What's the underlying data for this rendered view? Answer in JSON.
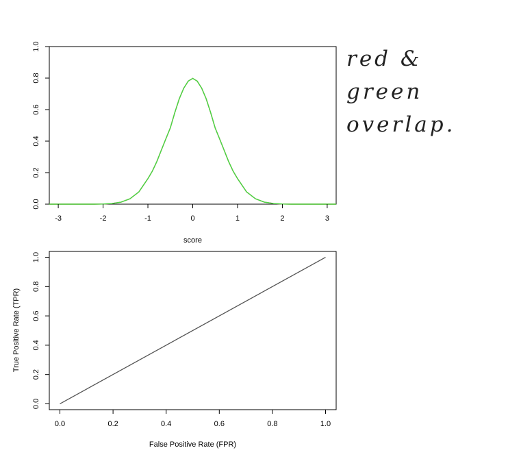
{
  "note": {
    "line1": "red & green",
    "line2": "overlap."
  },
  "chart_data": [
    {
      "type": "line",
      "title": "",
      "xlabel": "score",
      "ylabel": "",
      "xlim": [
        -3.2,
        3.2
      ],
      "ylim": [
        0,
        1.0
      ],
      "xticks": [
        "-3",
        "-2",
        "-1",
        "0",
        "1",
        "2",
        "3"
      ],
      "yticks": [
        "0.0",
        "0.2",
        "0.4",
        "0.6",
        "0.8",
        "1.0"
      ],
      "grid": false,
      "legend": "none",
      "series": [
        {
          "color": "#cc2222",
          "x": [
            -3.2,
            -3.0,
            -2.8,
            -2.6,
            -2.4,
            -2.2,
            -2.0,
            -1.8,
            -1.6,
            -1.4,
            -1.2,
            -1.0,
            -0.9,
            -0.8,
            -0.7,
            -0.6,
            -0.5,
            -0.4,
            -0.3,
            -0.2,
            -0.1,
            0.0,
            0.1,
            0.2,
            0.3,
            0.4,
            0.5,
            0.6,
            0.7,
            0.8,
            0.9,
            1.0,
            1.2,
            1.4,
            1.6,
            1.8,
            2.0,
            2.2,
            2.4,
            2.6,
            2.8,
            3.0,
            3.2
          ],
          "y": [
            0.0,
            0.0,
            0.0,
            0.0,
            0.0,
            0.0,
            0.001,
            0.004,
            0.013,
            0.034,
            0.078,
            0.162,
            0.21,
            0.271,
            0.343,
            0.414,
            0.484,
            0.581,
            0.669,
            0.736,
            0.781,
            0.798,
            0.781,
            0.736,
            0.669,
            0.581,
            0.484,
            0.414,
            0.343,
            0.271,
            0.21,
            0.162,
            0.078,
            0.034,
            0.013,
            0.004,
            0.001,
            0.0,
            0.0,
            0.0,
            0.0,
            0.0,
            0.0
          ]
        },
        {
          "color": "#44dd44",
          "x": [
            -3.2,
            -3.0,
            -2.8,
            -2.6,
            -2.4,
            -2.2,
            -2.0,
            -1.8,
            -1.6,
            -1.4,
            -1.2,
            -1.0,
            -0.9,
            -0.8,
            -0.7,
            -0.6,
            -0.5,
            -0.4,
            -0.3,
            -0.2,
            -0.1,
            0.0,
            0.1,
            0.2,
            0.3,
            0.4,
            0.5,
            0.6,
            0.7,
            0.8,
            0.9,
            1.0,
            1.2,
            1.4,
            1.6,
            1.8,
            2.0,
            2.2,
            2.4,
            2.6,
            2.8,
            3.0,
            3.2
          ],
          "y": [
            0.0,
            0.0,
            0.0,
            0.0,
            0.0,
            0.0,
            0.001,
            0.004,
            0.013,
            0.034,
            0.078,
            0.162,
            0.21,
            0.271,
            0.343,
            0.414,
            0.484,
            0.581,
            0.669,
            0.736,
            0.781,
            0.798,
            0.781,
            0.736,
            0.669,
            0.581,
            0.484,
            0.414,
            0.343,
            0.271,
            0.21,
            0.162,
            0.078,
            0.034,
            0.013,
            0.004,
            0.001,
            0.0,
            0.0,
            0.0,
            0.0,
            0.0,
            0.0
          ]
        }
      ]
    },
    {
      "type": "line",
      "title": "",
      "xlabel": "False Positive Rate (FPR)",
      "ylabel": "True Positive Rate (TPR)",
      "xlim": [
        -0.04,
        1.04
      ],
      "ylim": [
        -0.04,
        1.04
      ],
      "xticks": [
        "0.0",
        "0.2",
        "0.4",
        "0.6",
        "0.8",
        "1.0"
      ],
      "yticks": [
        "0.0",
        "0.2",
        "0.4",
        "0.6",
        "0.8",
        "1.0"
      ],
      "grid": false,
      "legend": "none",
      "series": [
        {
          "color": "#555555",
          "x": [
            0.0,
            1.0
          ],
          "y": [
            0.0,
            1.0
          ]
        }
      ]
    }
  ]
}
